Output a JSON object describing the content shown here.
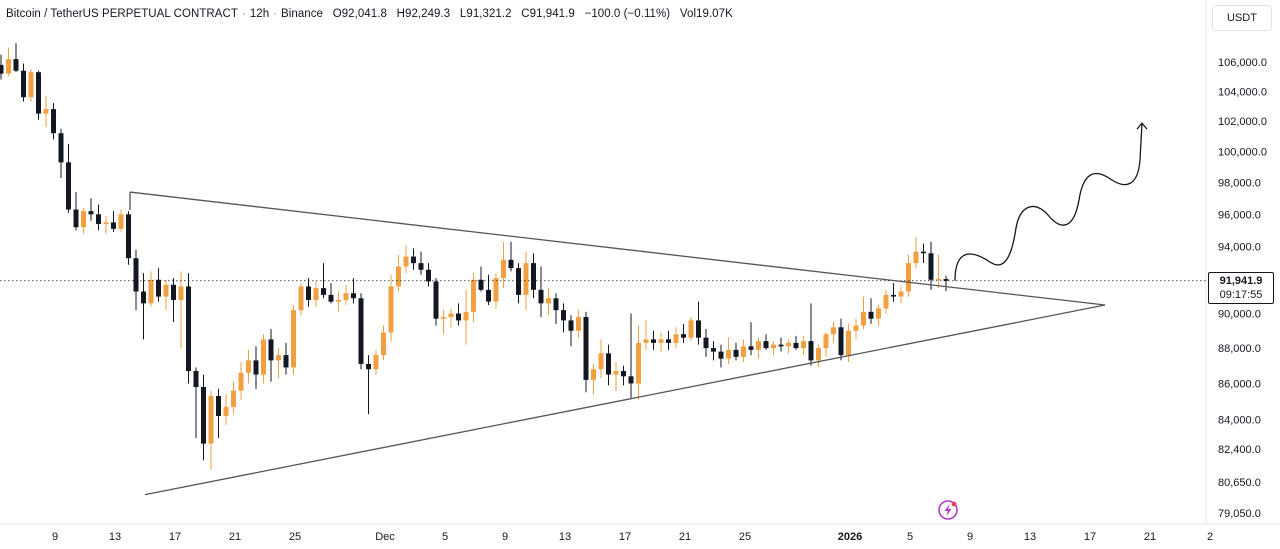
{
  "header": {
    "symbol": "Bitcoin / TetherUS PERPETUAL CONTRACT",
    "interval": "12h",
    "exchange": "Binance",
    "open_label": "O",
    "open": "92,041.8",
    "high_label": "H",
    "high": "92,249.3",
    "low_label": "L",
    "low": "91,321.2",
    "close_label": "C",
    "close": "91,941.9",
    "change": "−100.0 (−0.11%)",
    "vol_label": "Vol",
    "volume": "19.07K"
  },
  "currency_button": "USDT",
  "last_price": {
    "price": "91,941.9",
    "countdown": "09:17:55"
  },
  "colors": {
    "up": "#f0a040",
    "down": "#131722",
    "pattern_line": "#555555"
  },
  "icons": [
    "lightning-pulse-icon",
    "arrow-up-icon"
  ],
  "chart_data": {
    "type": "candlestick",
    "title": "",
    "xlabel": "",
    "ylabel": "",
    "y_scale": "log",
    "y_ticks": [
      106000,
      104000,
      102000,
      100000,
      98000,
      96000,
      94000,
      90000,
      88000,
      86000,
      84000,
      82400,
      80650,
      79050
    ],
    "y_tick_labels": [
      "106,000.0",
      "104,000.0",
      "102,000.0",
      "100,000.0",
      "98,000.0",
      "96,000.0",
      "94,000.0",
      "90,000.0",
      "88,000.0",
      "86,000.0",
      "84,000.0",
      "82,400.0",
      "80,650.0",
      "79,050.0"
    ],
    "x_tick_labels": [
      "9",
      "13",
      "17",
      "21",
      "25",
      "Dec",
      "5",
      "9",
      "13",
      "17",
      "21",
      "25",
      "2026",
      "5",
      "9",
      "13",
      "17",
      "21",
      "2"
    ],
    "x_tick_dates": [
      "2025-11-09",
      "2025-11-13",
      "2025-11-17",
      "2025-11-21",
      "2025-11-25",
      "2025-12-01",
      "2025-12-05",
      "2025-12-09",
      "2025-12-13",
      "2025-12-17",
      "2025-12-21",
      "2025-12-25",
      "2026-01-01",
      "2026-01-05",
      "2026-01-09",
      "2026-01-13",
      "2026-01-17",
      "2026-01-21",
      "2026-01-25"
    ],
    "candles": [
      {
        "o": 103500,
        "h": 104600,
        "l": 102600,
        "c": 104200
      },
      {
        "o": 104200,
        "h": 105200,
        "l": 103400,
        "c": 103700
      },
      {
        "o": 103700,
        "h": 104100,
        "l": 101700,
        "c": 102100
      },
      {
        "o": 102100,
        "h": 103200,
        "l": 100200,
        "c": 100700
      },
      {
        "o": 100700,
        "h": 103700,
        "l": 100300,
        "c": 103500
      },
      {
        "o": 103500,
        "h": 104300,
        "l": 102700,
        "c": 103100
      },
      {
        "o": 103100,
        "h": 103500,
        "l": 99900,
        "c": 101800
      },
      {
        "o": 101800,
        "h": 103800,
        "l": 101300,
        "c": 102700
      },
      {
        "o": 102700,
        "h": 103400,
        "l": 101800,
        "c": 102200
      },
      {
        "o": 102200,
        "h": 102900,
        "l": 101400,
        "c": 101900
      },
      {
        "o": 101900,
        "h": 105000,
        "l": 101700,
        "c": 104700
      },
      {
        "o": 104700,
        "h": 106300,
        "l": 104300,
        "c": 105800
      },
      {
        "o": 105800,
        "h": 106500,
        "l": 104800,
        "c": 105200
      },
      {
        "o": 105200,
        "h": 107000,
        "l": 105000,
        "c": 106200
      },
      {
        "o": 106200,
        "h": 107300,
        "l": 105300,
        "c": 105400
      },
      {
        "o": 105400,
        "h": 105900,
        "l": 103300,
        "c": 103600
      },
      {
        "o": 103600,
        "h": 105500,
        "l": 103300,
        "c": 105300
      },
      {
        "o": 105300,
        "h": 105400,
        "l": 102100,
        "c": 102500
      },
      {
        "o": 102500,
        "h": 103700,
        "l": 101600,
        "c": 102800
      },
      {
        "o": 102800,
        "h": 103200,
        "l": 100800,
        "c": 101200
      },
      {
        "o": 101200,
        "h": 101500,
        "l": 98300,
        "c": 99300
      },
      {
        "o": 99300,
        "h": 100500,
        "l": 96100,
        "c": 96300
      },
      {
        "o": 96300,
        "h": 97400,
        "l": 95000,
        "c": 95200
      },
      {
        "o": 95200,
        "h": 96400,
        "l": 94800,
        "c": 96200
      },
      {
        "o": 96200,
        "h": 97000,
        "l": 95600,
        "c": 96000
      },
      {
        "o": 96000,
        "h": 96600,
        "l": 95000,
        "c": 95400
      },
      {
        "o": 95400,
        "h": 95900,
        "l": 94800,
        "c": 95500
      },
      {
        "o": 95500,
        "h": 96200,
        "l": 94900,
        "c": 95100
      },
      {
        "o": 95100,
        "h": 96300,
        "l": 94900,
        "c": 96000
      },
      {
        "o": 96000,
        "h": 96200,
        "l": 92900,
        "c": 93300
      },
      {
        "o": 93300,
        "h": 93800,
        "l": 90200,
        "c": 91300
      },
      {
        "o": 91300,
        "h": 92400,
        "l": 88500,
        "c": 90600
      },
      {
        "o": 90600,
        "h": 92500,
        "l": 90400,
        "c": 92000
      },
      {
        "o": 92000,
        "h": 92700,
        "l": 90700,
        "c": 91000
      },
      {
        "o": 91000,
        "h": 92000,
        "l": 90200,
        "c": 91700
      },
      {
        "o": 91700,
        "h": 92100,
        "l": 89500,
        "c": 90800
      },
      {
        "o": 90800,
        "h": 92500,
        "l": 88000,
        "c": 91600
      },
      {
        "o": 91600,
        "h": 92400,
        "l": 86000,
        "c": 86700
      },
      {
        "o": 86700,
        "h": 86900,
        "l": 83000,
        "c": 85800
      },
      {
        "o": 85800,
        "h": 86500,
        "l": 81800,
        "c": 82700
      },
      {
        "o": 82700,
        "h": 85600,
        "l": 81300,
        "c": 85300
      },
      {
        "o": 85300,
        "h": 85700,
        "l": 83000,
        "c": 84200
      },
      {
        "o": 84200,
        "h": 85400,
        "l": 83700,
        "c": 84700
      },
      {
        "o": 84700,
        "h": 86100,
        "l": 84300,
        "c": 85600
      },
      {
        "o": 85600,
        "h": 87200,
        "l": 85100,
        "c": 86600
      },
      {
        "o": 86600,
        "h": 87900,
        "l": 86000,
        "c": 87300
      },
      {
        "o": 87300,
        "h": 88100,
        "l": 85700,
        "c": 86500
      },
      {
        "o": 86500,
        "h": 88800,
        "l": 86000,
        "c": 88500
      },
      {
        "o": 88500,
        "h": 89100,
        "l": 86100,
        "c": 87300
      },
      {
        "o": 87300,
        "h": 88000,
        "l": 86300,
        "c": 87600
      },
      {
        "o": 87600,
        "h": 88300,
        "l": 86500,
        "c": 86900
      },
      {
        "o": 86900,
        "h": 90500,
        "l": 86500,
        "c": 90200
      },
      {
        "o": 90200,
        "h": 91800,
        "l": 89900,
        "c": 91600
      },
      {
        "o": 91600,
        "h": 92100,
        "l": 90400,
        "c": 90800
      },
      {
        "o": 90800,
        "h": 91900,
        "l": 90400,
        "c": 91500
      },
      {
        "o": 91500,
        "h": 93000,
        "l": 90900,
        "c": 91100
      },
      {
        "o": 91100,
        "h": 91800,
        "l": 90600,
        "c": 90700
      },
      {
        "o": 90700,
        "h": 91300,
        "l": 90100,
        "c": 90800
      },
      {
        "o": 90800,
        "h": 91700,
        "l": 90500,
        "c": 91200
      },
      {
        "o": 91200,
        "h": 92100,
        "l": 90600,
        "c": 90900
      },
      {
        "o": 90900,
        "h": 91200,
        "l": 86800,
        "c": 87100
      },
      {
        "o": 87100,
        "h": 87600,
        "l": 84300,
        "c": 86800
      },
      {
        "o": 86800,
        "h": 87900,
        "l": 86500,
        "c": 87600
      },
      {
        "o": 87600,
        "h": 89300,
        "l": 87300,
        "c": 88900
      },
      {
        "o": 88900,
        "h": 92300,
        "l": 88400,
        "c": 91600
      },
      {
        "o": 91600,
        "h": 93500,
        "l": 91300,
        "c": 92800
      },
      {
        "o": 92800,
        "h": 94100,
        "l": 92400,
        "c": 93400
      },
      {
        "o": 93400,
        "h": 93900,
        "l": 92600,
        "c": 93000
      },
      {
        "o": 93000,
        "h": 93700,
        "l": 92300,
        "c": 92600
      },
      {
        "o": 92600,
        "h": 93000,
        "l": 91600,
        "c": 91900
      },
      {
        "o": 91900,
        "h": 92100,
        "l": 89300,
        "c": 89700
      },
      {
        "o": 89700,
        "h": 90200,
        "l": 88800,
        "c": 89800
      },
      {
        "o": 89800,
        "h": 90300,
        "l": 89200,
        "c": 90000
      },
      {
        "o": 90000,
        "h": 90600,
        "l": 89300,
        "c": 89600
      },
      {
        "o": 89600,
        "h": 91400,
        "l": 88200,
        "c": 90100
      },
      {
        "o": 90100,
        "h": 92400,
        "l": 89500,
        "c": 92000
      },
      {
        "o": 92000,
        "h": 92800,
        "l": 91300,
        "c": 91400
      },
      {
        "o": 91400,
        "h": 92300,
        "l": 90500,
        "c": 90700
      },
      {
        "o": 90700,
        "h": 92400,
        "l": 90300,
        "c": 92100
      },
      {
        "o": 92100,
        "h": 94300,
        "l": 91500,
        "c": 93200
      },
      {
        "o": 93200,
        "h": 94300,
        "l": 92500,
        "c": 92700
      },
      {
        "o": 92700,
        "h": 93000,
        "l": 90600,
        "c": 91100
      },
      {
        "o": 91100,
        "h": 93700,
        "l": 90200,
        "c": 93000
      },
      {
        "o": 93000,
        "h": 93600,
        "l": 90900,
        "c": 91400
      },
      {
        "o": 91400,
        "h": 92800,
        "l": 89800,
        "c": 90600
      },
      {
        "o": 90600,
        "h": 91500,
        "l": 89900,
        "c": 90900
      },
      {
        "o": 90900,
        "h": 91200,
        "l": 89400,
        "c": 90200
      },
      {
        "o": 90200,
        "h": 90600,
        "l": 88900,
        "c": 89600
      },
      {
        "o": 89600,
        "h": 89900,
        "l": 88100,
        "c": 89000
      },
      {
        "o": 89000,
        "h": 90200,
        "l": 88600,
        "c": 89800
      },
      {
        "o": 89800,
        "h": 90100,
        "l": 85500,
        "c": 86200
      },
      {
        "o": 86200,
        "h": 87100,
        "l": 85400,
        "c": 86800
      },
      {
        "o": 86800,
        "h": 88500,
        "l": 86300,
        "c": 87700
      },
      {
        "o": 87700,
        "h": 88200,
        "l": 85900,
        "c": 86500
      },
      {
        "o": 86500,
        "h": 87200,
        "l": 85600,
        "c": 86700
      },
      {
        "o": 86700,
        "h": 87000,
        "l": 85900,
        "c": 86400
      },
      {
        "o": 86400,
        "h": 90000,
        "l": 85200,
        "c": 86000
      },
      {
        "o": 86000,
        "h": 89300,
        "l": 85100,
        "c": 88300
      },
      {
        "o": 88300,
        "h": 89600,
        "l": 87900,
        "c": 88500
      },
      {
        "o": 88500,
        "h": 89000,
        "l": 87900,
        "c": 88300
      },
      {
        "o": 88300,
        "h": 88900,
        "l": 87800,
        "c": 88500
      },
      {
        "o": 88500,
        "h": 89000,
        "l": 87900,
        "c": 88300
      },
      {
        "o": 88300,
        "h": 89200,
        "l": 88000,
        "c": 88800
      },
      {
        "o": 88800,
        "h": 89400,
        "l": 88300,
        "c": 88600
      },
      {
        "o": 88600,
        "h": 89800,
        "l": 88400,
        "c": 89600
      },
      {
        "o": 89600,
        "h": 90700,
        "l": 88200,
        "c": 88600
      },
      {
        "o": 88600,
        "h": 89100,
        "l": 87500,
        "c": 88000
      },
      {
        "o": 88000,
        "h": 88400,
        "l": 87300,
        "c": 87800
      },
      {
        "o": 87800,
        "h": 88200,
        "l": 86900,
        "c": 87400
      },
      {
        "o": 87400,
        "h": 88600,
        "l": 87100,
        "c": 87900
      },
      {
        "o": 87900,
        "h": 88300,
        "l": 87300,
        "c": 87500
      },
      {
        "o": 87500,
        "h": 88500,
        "l": 87200,
        "c": 88100
      },
      {
        "o": 88100,
        "h": 89500,
        "l": 87600,
        "c": 87900
      },
      {
        "o": 87900,
        "h": 88600,
        "l": 87400,
        "c": 88400
      },
      {
        "o": 88400,
        "h": 88800,
        "l": 87900,
        "c": 88000
      },
      {
        "o": 88000,
        "h": 88400,
        "l": 87600,
        "c": 88200
      },
      {
        "o": 88200,
        "h": 88600,
        "l": 87800,
        "c": 88100
      },
      {
        "o": 88100,
        "h": 88500,
        "l": 87700,
        "c": 88300
      },
      {
        "o": 88300,
        "h": 88700,
        "l": 87900,
        "c": 88000
      },
      {
        "o": 88000,
        "h": 88700,
        "l": 87600,
        "c": 88400
      },
      {
        "o": 88400,
        "h": 90600,
        "l": 87000,
        "c": 87300
      },
      {
        "o": 87300,
        "h": 88200,
        "l": 86900,
        "c": 88000
      },
      {
        "o": 88000,
        "h": 88900,
        "l": 87500,
        "c": 88800
      },
      {
        "o": 88800,
        "h": 89500,
        "l": 88300,
        "c": 89200
      },
      {
        "o": 89200,
        "h": 89700,
        "l": 87300,
        "c": 87600
      },
      {
        "o": 87600,
        "h": 89400,
        "l": 87200,
        "c": 89000
      },
      {
        "o": 89000,
        "h": 89700,
        "l": 88500,
        "c": 89300
      },
      {
        "o": 89300,
        "h": 91000,
        "l": 89100,
        "c": 90100
      },
      {
        "o": 90100,
        "h": 90900,
        "l": 89400,
        "c": 89700
      },
      {
        "o": 89700,
        "h": 90500,
        "l": 89300,
        "c": 90300
      },
      {
        "o": 90300,
        "h": 91400,
        "l": 90000,
        "c": 91100
      },
      {
        "o": 91100,
        "h": 91800,
        "l": 90700,
        "c": 91000
      },
      {
        "o": 91000,
        "h": 91600,
        "l": 90600,
        "c": 91300
      },
      {
        "o": 91300,
        "h": 93500,
        "l": 91000,
        "c": 93000
      },
      {
        "o": 93000,
        "h": 94600,
        "l": 92700,
        "c": 93700
      },
      {
        "o": 93700,
        "h": 94200,
        "l": 93000,
        "c": 93600
      },
      {
        "o": 93600,
        "h": 94300,
        "l": 91400,
        "c": 92000
      },
      {
        "o": 92000,
        "h": 93500,
        "l": 91500,
        "c": 92050
      },
      {
        "o": 92041.8,
        "h": 92249.3,
        "l": 91321.2,
        "c": 91941.9
      }
    ],
    "current_price": 91941.9,
    "annotations": {
      "descending_trendline": [
        {
          "date": "2025-11-14",
          "price": 97400
        },
        {
          "date": "2026-01-18",
          "price": 90500
        }
      ],
      "ascending_trendline": [
        {
          "date": "2025-11-15",
          "price": 80000
        },
        {
          "date": "2026-01-18",
          "price": 90500
        }
      ],
      "projected_path_target": 102000
    },
    "grid": false
  }
}
